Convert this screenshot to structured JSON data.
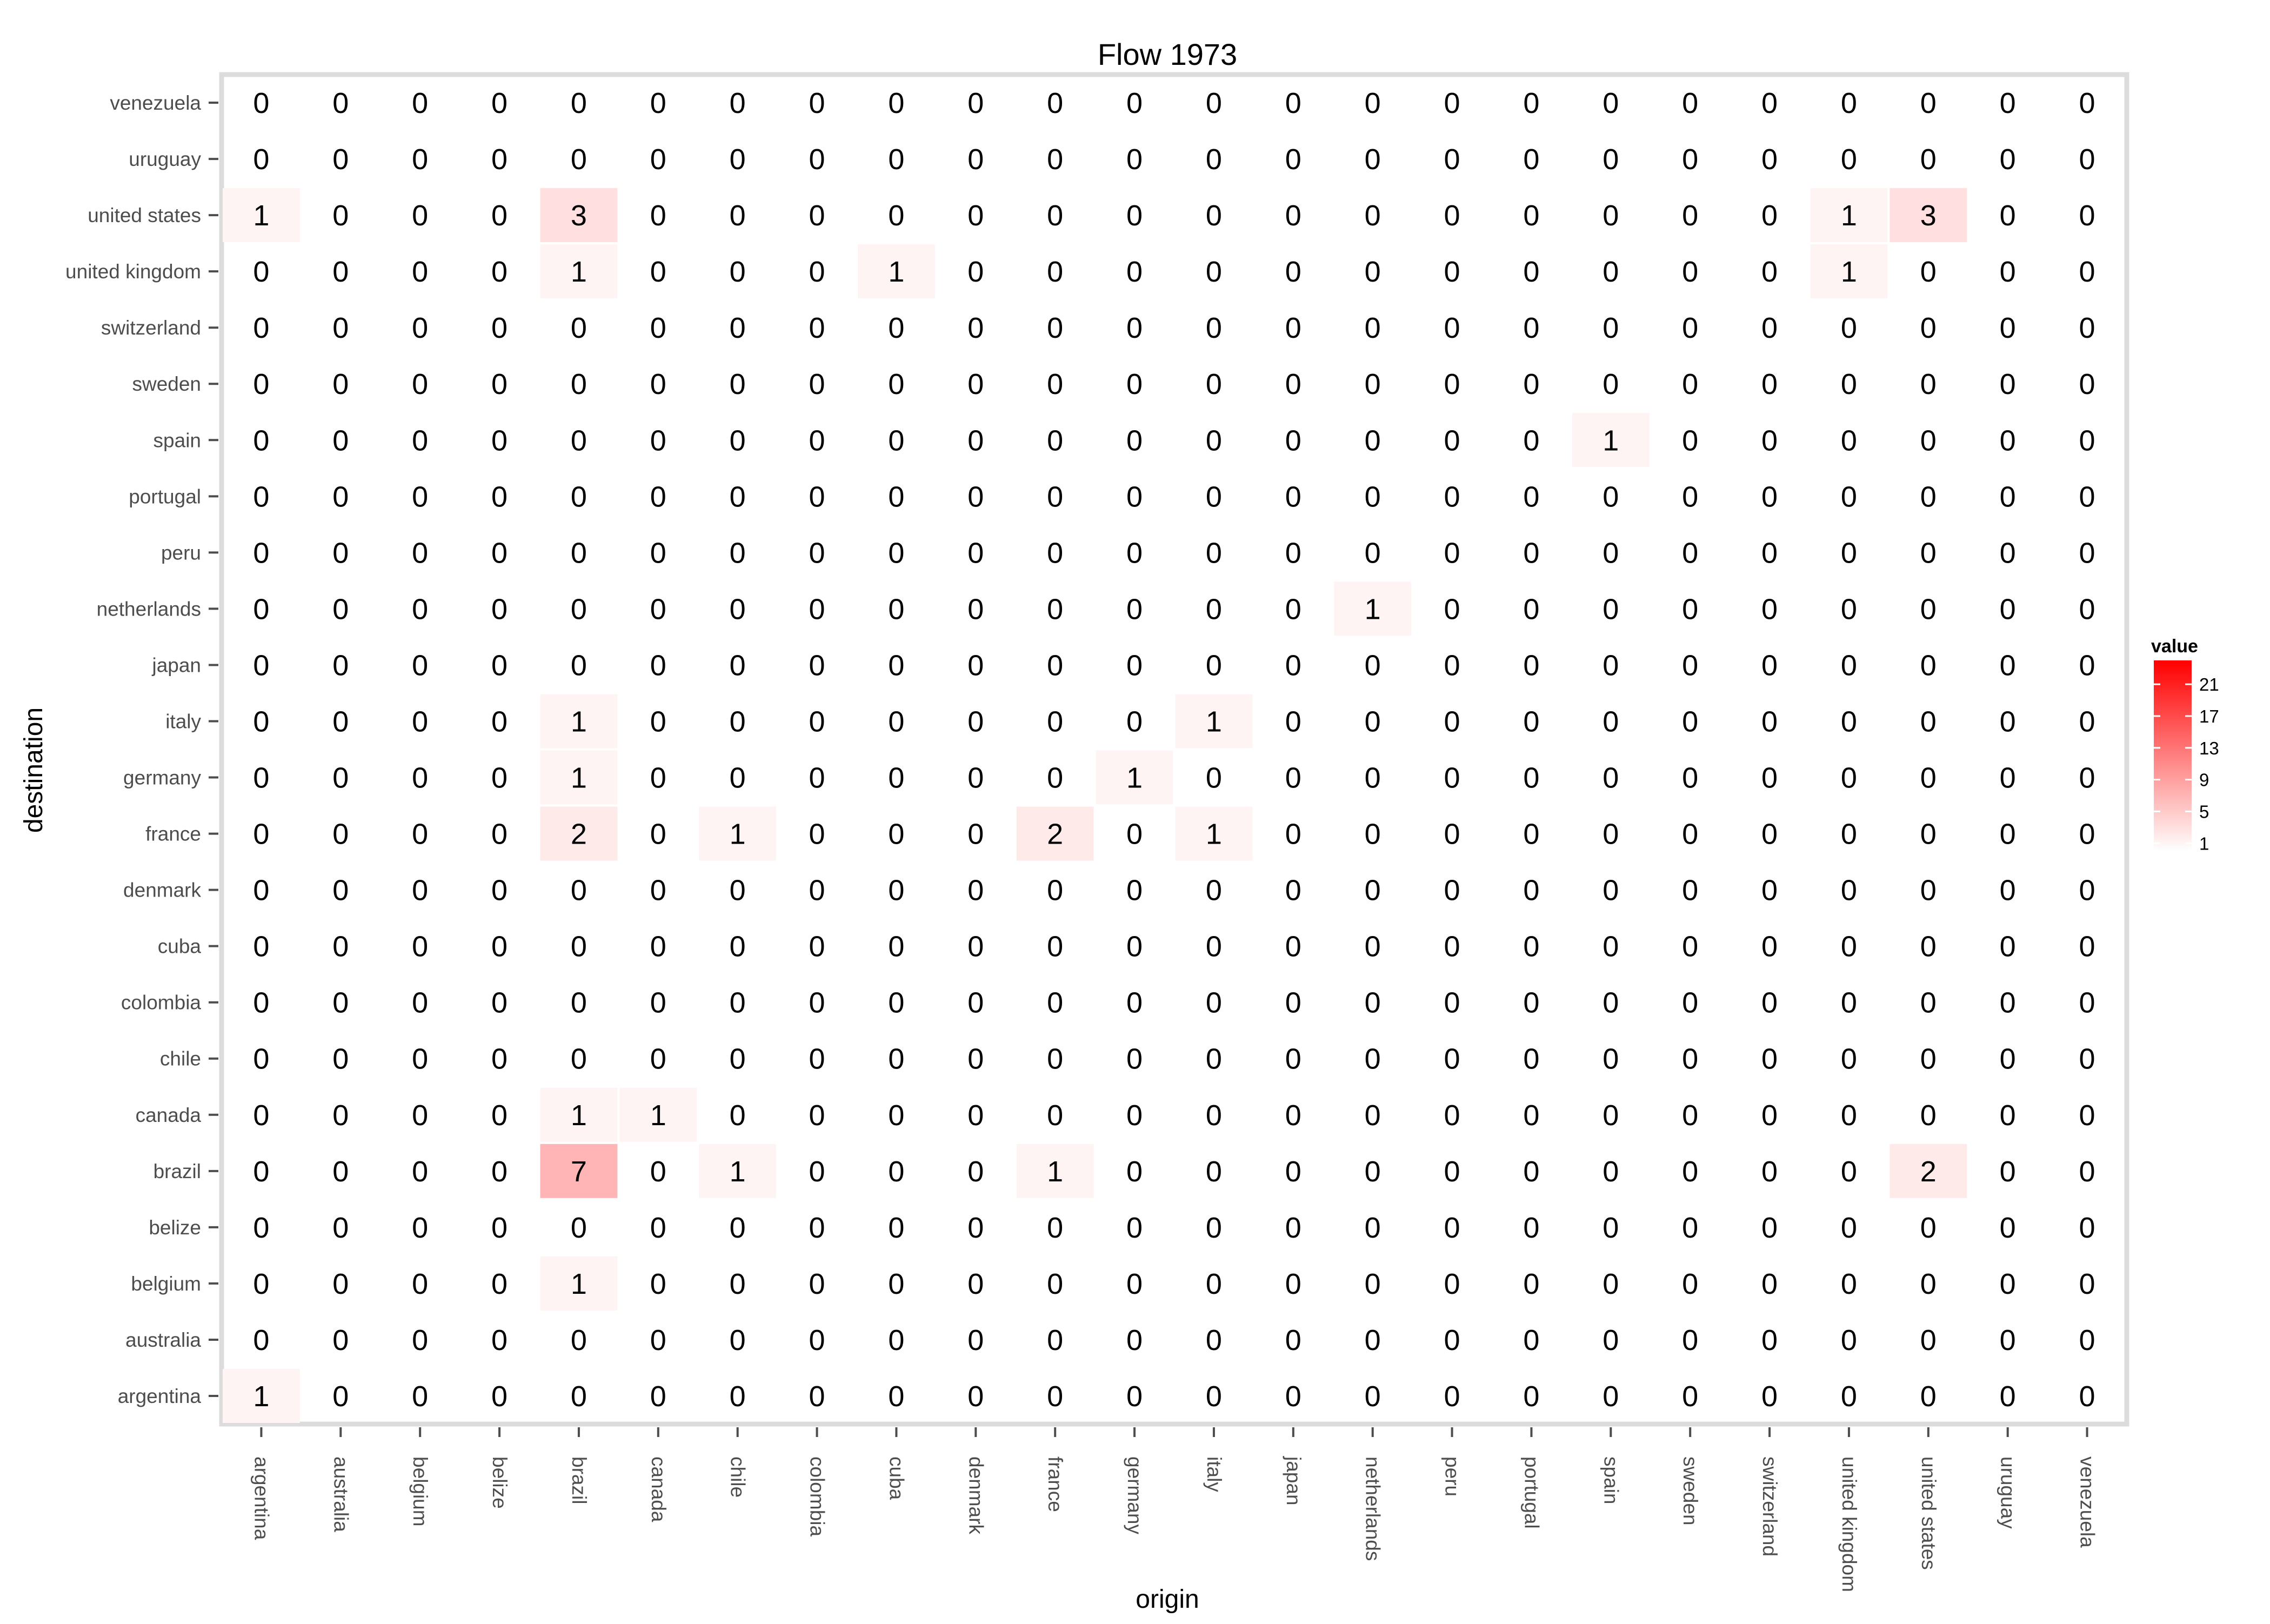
{
  "chart_data": {
    "type": "heatmap",
    "title": "Flow 1973",
    "xlabel": "origin",
    "ylabel": "destination",
    "x_categories": [
      "argentina",
      "australia",
      "belgium",
      "belize",
      "brazil",
      "canada",
      "chile",
      "colombia",
      "cuba",
      "denmark",
      "france",
      "germany",
      "italy",
      "japan",
      "netherlands",
      "peru",
      "portugal",
      "spain",
      "sweden",
      "switzerland",
      "united kingdom",
      "united states",
      "uruguay",
      "venezuela"
    ],
    "y_categories": [
      "argentina",
      "australia",
      "belgium",
      "belize",
      "brazil",
      "canada",
      "chile",
      "colombia",
      "cuba",
      "denmark",
      "france",
      "germany",
      "italy",
      "japan",
      "netherlands",
      "peru",
      "portugal",
      "spain",
      "sweden",
      "switzerland",
      "united kingdom",
      "united states",
      "uruguay",
      "venezuela"
    ],
    "values": [
      [
        1,
        0,
        0,
        0,
        0,
        0,
        0,
        0,
        0,
        0,
        0,
        0,
        0,
        0,
        0,
        0,
        0,
        0,
        0,
        0,
        0,
        0,
        0,
        0
      ],
      [
        0,
        0,
        0,
        0,
        0,
        0,
        0,
        0,
        0,
        0,
        0,
        0,
        0,
        0,
        0,
        0,
        0,
        0,
        0,
        0,
        0,
        0,
        0,
        0
      ],
      [
        0,
        0,
        0,
        0,
        1,
        0,
        0,
        0,
        0,
        0,
        0,
        0,
        0,
        0,
        0,
        0,
        0,
        0,
        0,
        0,
        0,
        0,
        0,
        0
      ],
      [
        0,
        0,
        0,
        0,
        0,
        0,
        0,
        0,
        0,
        0,
        0,
        0,
        0,
        0,
        0,
        0,
        0,
        0,
        0,
        0,
        0,
        0,
        0,
        0
      ],
      [
        0,
        0,
        0,
        0,
        7,
        0,
        1,
        0,
        0,
        0,
        1,
        0,
        0,
        0,
        0,
        0,
        0,
        0,
        0,
        0,
        0,
        2,
        0,
        0
      ],
      [
        0,
        0,
        0,
        0,
        1,
        1,
        0,
        0,
        0,
        0,
        0,
        0,
        0,
        0,
        0,
        0,
        0,
        0,
        0,
        0,
        0,
        0,
        0,
        0
      ],
      [
        0,
        0,
        0,
        0,
        0,
        0,
        0,
        0,
        0,
        0,
        0,
        0,
        0,
        0,
        0,
        0,
        0,
        0,
        0,
        0,
        0,
        0,
        0,
        0
      ],
      [
        0,
        0,
        0,
        0,
        0,
        0,
        0,
        0,
        0,
        0,
        0,
        0,
        0,
        0,
        0,
        0,
        0,
        0,
        0,
        0,
        0,
        0,
        0,
        0
      ],
      [
        0,
        0,
        0,
        0,
        0,
        0,
        0,
        0,
        0,
        0,
        0,
        0,
        0,
        0,
        0,
        0,
        0,
        0,
        0,
        0,
        0,
        0,
        0,
        0
      ],
      [
        0,
        0,
        0,
        0,
        0,
        0,
        0,
        0,
        0,
        0,
        0,
        0,
        0,
        0,
        0,
        0,
        0,
        0,
        0,
        0,
        0,
        0,
        0,
        0
      ],
      [
        0,
        0,
        0,
        0,
        2,
        0,
        1,
        0,
        0,
        0,
        2,
        0,
        1,
        0,
        0,
        0,
        0,
        0,
        0,
        0,
        0,
        0,
        0,
        0
      ],
      [
        0,
        0,
        0,
        0,
        1,
        0,
        0,
        0,
        0,
        0,
        0,
        1,
        0,
        0,
        0,
        0,
        0,
        0,
        0,
        0,
        0,
        0,
        0,
        0
      ],
      [
        0,
        0,
        0,
        0,
        1,
        0,
        0,
        0,
        0,
        0,
        0,
        0,
        1,
        0,
        0,
        0,
        0,
        0,
        0,
        0,
        0,
        0,
        0,
        0
      ],
      [
        0,
        0,
        0,
        0,
        0,
        0,
        0,
        0,
        0,
        0,
        0,
        0,
        0,
        0,
        0,
        0,
        0,
        0,
        0,
        0,
        0,
        0,
        0,
        0
      ],
      [
        0,
        0,
        0,
        0,
        0,
        0,
        0,
        0,
        0,
        0,
        0,
        0,
        0,
        0,
        1,
        0,
        0,
        0,
        0,
        0,
        0,
        0,
        0,
        0
      ],
      [
        0,
        0,
        0,
        0,
        0,
        0,
        0,
        0,
        0,
        0,
        0,
        0,
        0,
        0,
        0,
        0,
        0,
        0,
        0,
        0,
        0,
        0,
        0,
        0
      ],
      [
        0,
        0,
        0,
        0,
        0,
        0,
        0,
        0,
        0,
        0,
        0,
        0,
        0,
        0,
        0,
        0,
        0,
        0,
        0,
        0,
        0,
        0,
        0,
        0
      ],
      [
        0,
        0,
        0,
        0,
        0,
        0,
        0,
        0,
        0,
        0,
        0,
        0,
        0,
        0,
        0,
        0,
        0,
        1,
        0,
        0,
        0,
        0,
        0,
        0
      ],
      [
        0,
        0,
        0,
        0,
        0,
        0,
        0,
        0,
        0,
        0,
        0,
        0,
        0,
        0,
        0,
        0,
        0,
        0,
        0,
        0,
        0,
        0,
        0,
        0
      ],
      [
        0,
        0,
        0,
        0,
        0,
        0,
        0,
        0,
        0,
        0,
        0,
        0,
        0,
        0,
        0,
        0,
        0,
        0,
        0,
        0,
        0,
        0,
        0,
        0
      ],
      [
        0,
        0,
        0,
        0,
        1,
        0,
        0,
        0,
        1,
        0,
        0,
        0,
        0,
        0,
        0,
        0,
        0,
        0,
        0,
        0,
        1,
        0,
        0,
        0
      ],
      [
        1,
        0,
        0,
        0,
        3,
        0,
        0,
        0,
        0,
        0,
        0,
        0,
        0,
        0,
        0,
        0,
        0,
        0,
        0,
        0,
        1,
        3,
        0,
        0
      ],
      [
        0,
        0,
        0,
        0,
        0,
        0,
        0,
        0,
        0,
        0,
        0,
        0,
        0,
        0,
        0,
        0,
        0,
        0,
        0,
        0,
        0,
        0,
        0,
        0
      ],
      [
        0,
        0,
        0,
        0,
        0,
        0,
        0,
        0,
        0,
        0,
        0,
        0,
        0,
        0,
        0,
        0,
        0,
        0,
        0,
        0,
        0,
        0,
        0,
        0
      ]
    ],
    "legend": {
      "title": "value",
      "ticks": [
        1,
        5,
        9,
        13,
        17,
        21
      ],
      "range": [
        0,
        24
      ],
      "placement": "right"
    },
    "colors": {
      "low": "#ffffff",
      "high": "#ff0000",
      "panel_border": "#dcdcdc"
    }
  }
}
